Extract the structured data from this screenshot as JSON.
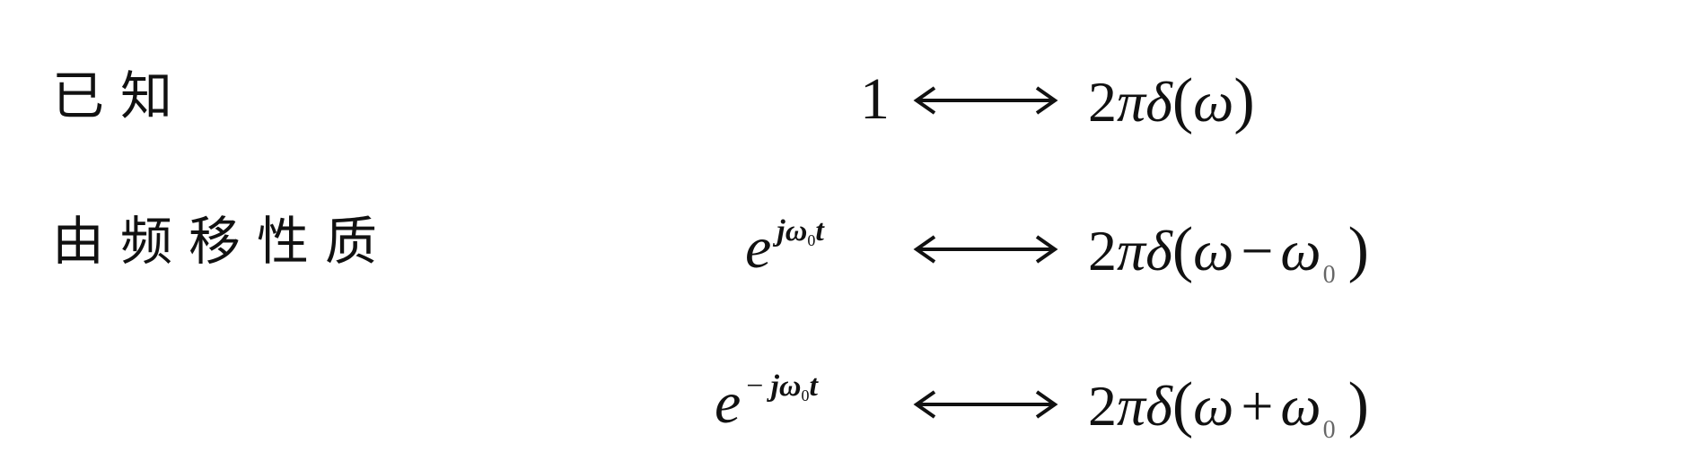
{
  "labels": {
    "known": "已知",
    "freq_shift": "由频移性质"
  },
  "equations": [
    {
      "lhs": "1",
      "rhs": {
        "coef": "2",
        "pi": "π",
        "delta": "δ",
        "open": "(",
        "omega": "ω",
        "op": "",
        "omega0": "",
        "sub": "",
        "close": ")"
      }
    },
    {
      "lhs_base": "e",
      "lhs_sign": "",
      "lhs_j": "jω",
      "lhs_sub": "0",
      "lhs_t": "t",
      "rhs": {
        "coef": "2",
        "pi": "π",
        "delta": "δ",
        "open": "(",
        "omega": "ω",
        "op": "−",
        "omega0": "ω",
        "sub": "0",
        "close": ")"
      }
    },
    {
      "lhs_base": "e",
      "lhs_sign": "−",
      "lhs_j": "jω",
      "lhs_sub": "0",
      "lhs_t": "t",
      "rhs": {
        "coef": "2",
        "pi": "π",
        "delta": "δ",
        "open": "(",
        "omega": "ω",
        "op": "+",
        "omega0": "ω",
        "sub": "0",
        "close": ")"
      }
    }
  ],
  "arrow_symbol": "double-headed-arrow"
}
